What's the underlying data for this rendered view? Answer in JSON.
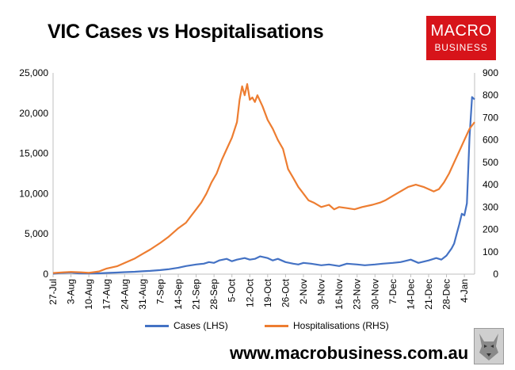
{
  "title": "VIC Cases vs Hospitalisations",
  "logo": {
    "line1": "MACRO",
    "line2": "BUSINESS",
    "color": "#d7141a"
  },
  "footer": "www.macrobusiness.com.au",
  "chart_data": {
    "type": "line",
    "title": "VIC Cases vs Hospitalisations",
    "x_tick_labels": [
      "27-Jul",
      "3-Aug",
      "10-Aug",
      "17-Aug",
      "24-Aug",
      "31-Aug",
      "7-Sep",
      "14-Sep",
      "21-Sep",
      "28-Sep",
      "5-Oct",
      "12-Oct",
      "19-Oct",
      "26-Oct",
      "2-Nov",
      "9-Nov",
      "16-Nov",
      "23-Nov",
      "30-Nov",
      "7-Dec",
      "14-Dec",
      "21-Dec",
      "28-Dec",
      "4-Jan"
    ],
    "x_range_days": [
      0,
      165
    ],
    "y_left": {
      "ylim": [
        0,
        25000
      ],
      "ticks": [
        "0",
        "5,000",
        "10,000",
        "15,000",
        "20,000",
        "25,000"
      ]
    },
    "y_right": {
      "ylim": [
        0,
        900
      ],
      "ticks": [
        "0",
        "100",
        "200",
        "300",
        "400",
        "500",
        "600",
        "700",
        "800",
        "900"
      ]
    },
    "grid": false,
    "legend_position": "bottom",
    "series": [
      {
        "name": "Cases (LHS)",
        "axis": "left",
        "color": "#4472c4",
        "day": [
          0,
          3,
          7,
          10,
          14,
          18,
          21,
          25,
          28,
          32,
          35,
          38,
          42,
          45,
          49,
          52,
          56,
          59,
          61,
          63,
          65,
          68,
          70,
          72,
          75,
          77,
          79,
          81,
          84,
          86,
          88,
          91,
          94,
          96,
          98,
          101,
          105,
          108,
          112,
          115,
          119,
          122,
          126,
          129,
          133,
          136,
          140,
          143,
          147,
          150,
          152,
          154,
          156,
          157,
          158,
          159,
          160,
          161,
          162,
          163,
          164,
          165
        ],
        "values": [
          50,
          150,
          200,
          100,
          80,
          100,
          150,
          200,
          250,
          300,
          350,
          400,
          500,
          600,
          800,
          1000,
          1200,
          1300,
          1500,
          1400,
          1700,
          1900,
          1600,
          1800,
          2000,
          1800,
          1900,
          2200,
          2000,
          1700,
          1900,
          1500,
          1300,
          1200,
          1400,
          1300,
          1100,
          1200,
          1000,
          1300,
          1200,
          1100,
          1200,
          1300,
          1400,
          1500,
          1800,
          1400,
          1700,
          2000,
          1800,
          2300,
          3200,
          3800,
          5000,
          6200,
          7500,
          7300,
          8800,
          17000,
          22000,
          21700
        ]
      },
      {
        "name": "Hospitalisations (RHS)",
        "axis": "right",
        "color": "#ed7d31",
        "day": [
          0,
          4,
          7,
          11,
          14,
          18,
          21,
          25,
          28,
          32,
          35,
          38,
          42,
          45,
          47,
          49,
          52,
          54,
          56,
          58,
          60,
          62,
          64,
          66,
          68,
          70,
          72,
          73,
          74,
          75,
          76,
          77,
          78,
          79,
          80,
          82,
          84,
          86,
          88,
          90,
          92,
          94,
          96,
          98,
          100,
          102,
          105,
          108,
          110,
          112,
          115,
          118,
          121,
          125,
          128,
          130,
          133,
          136,
          139,
          142,
          145,
          147,
          149,
          151,
          153,
          155,
          157,
          159,
          161,
          163,
          165
        ],
        "values": [
          5,
          8,
          10,
          8,
          6,
          12,
          25,
          35,
          50,
          70,
          90,
          110,
          140,
          165,
          185,
          205,
          230,
          260,
          290,
          320,
          360,
          410,
          450,
          510,
          560,
          610,
          680,
          780,
          840,
          800,
          850,
          780,
          790,
          770,
          800,
          750,
          690,
          650,
          600,
          560,
          470,
          430,
          390,
          360,
          330,
          320,
          300,
          310,
          290,
          300,
          295,
          290,
          300,
          310,
          320,
          330,
          350,
          370,
          390,
          400,
          390,
          380,
          370,
          380,
          410,
          450,
          500,
          550,
          600,
          650,
          680
        ]
      }
    ]
  }
}
